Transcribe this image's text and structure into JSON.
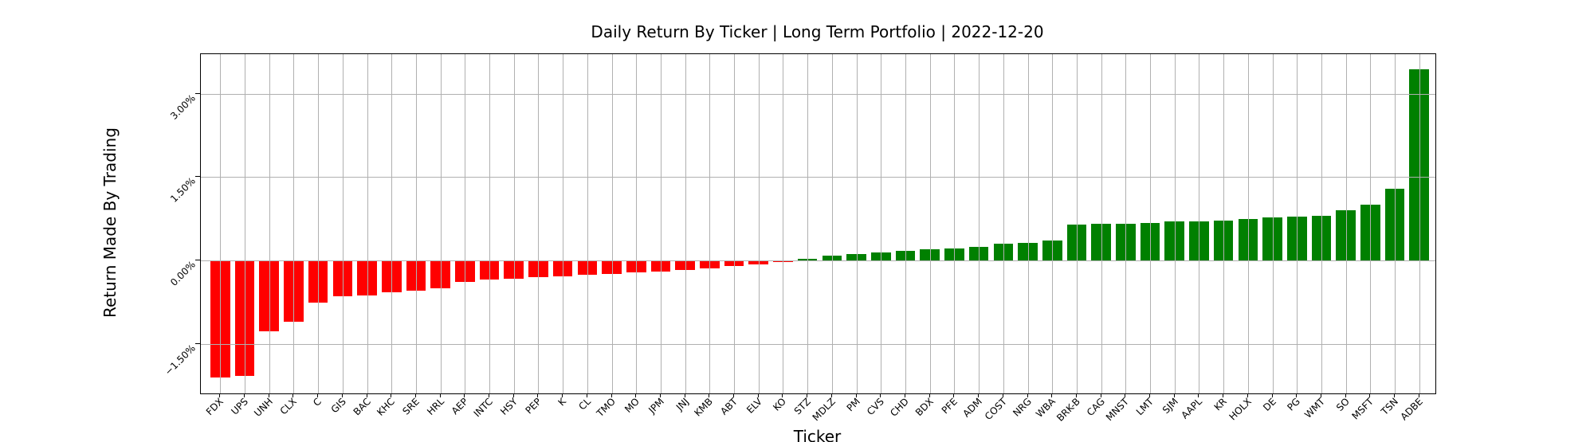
{
  "chart_data": {
    "type": "bar",
    "title": "Daily Return By Ticker | Long Term Portfolio | 2022-12-20",
    "xlabel": "Ticker",
    "ylabel": "Return Made By Trading",
    "grid": true,
    "legend": false,
    "ylim": [
      -2.39,
      3.71
    ],
    "yticks": [
      {
        "label": "3.00%",
        "value": 3.0
      },
      {
        "label": "1.50%",
        "value": 1.5
      },
      {
        "label": "0.00%",
        "value": 0.0
      },
      {
        "label": "−1.50%",
        "value": -1.5
      }
    ],
    "colors": {
      "positive": "#008000",
      "negative": "#ff0000",
      "gridline": "#b0b0b0"
    },
    "categories": [
      "FDX",
      "UPS",
      "UNH",
      "CLX",
      "C",
      "GIS",
      "BAC",
      "KHC",
      "SRE",
      "HRL",
      "AEP",
      "INTC",
      "HSY",
      "PEP",
      "K",
      "CL",
      "TMO",
      "MO",
      "JPM",
      "JNJ",
      "KMB",
      "ABT",
      "ELV",
      "KO",
      "STZ",
      "MDLZ",
      "PM",
      "CVS",
      "CHD",
      "BDX",
      "PFE",
      "ADM",
      "COST",
      "NRG",
      "WBA",
      "BRK-B",
      "CAG",
      "MNST",
      "LMT",
      "SJM",
      "AAPL",
      "KR",
      "HOLX",
      "DE",
      "PG",
      "WMT",
      "SO",
      "MSFT",
      "TSN",
      "ADBE"
    ],
    "values": [
      -2.11,
      -2.07,
      -1.28,
      -1.1,
      -0.76,
      -0.65,
      -0.63,
      -0.57,
      -0.55,
      -0.5,
      -0.38,
      -0.34,
      -0.33,
      -0.3,
      -0.29,
      -0.25,
      -0.24,
      -0.21,
      -0.2,
      -0.17,
      -0.14,
      -0.1,
      -0.07,
      -0.03,
      0.03,
      0.09,
      0.12,
      0.14,
      0.17,
      0.2,
      0.21,
      0.24,
      0.3,
      0.31,
      0.36,
      0.64,
      0.66,
      0.66,
      0.68,
      0.7,
      0.71,
      0.72,
      0.74,
      0.78,
      0.79,
      0.81,
      0.9,
      1.01,
      1.29,
      3.44
    ],
    "units": "percent"
  }
}
